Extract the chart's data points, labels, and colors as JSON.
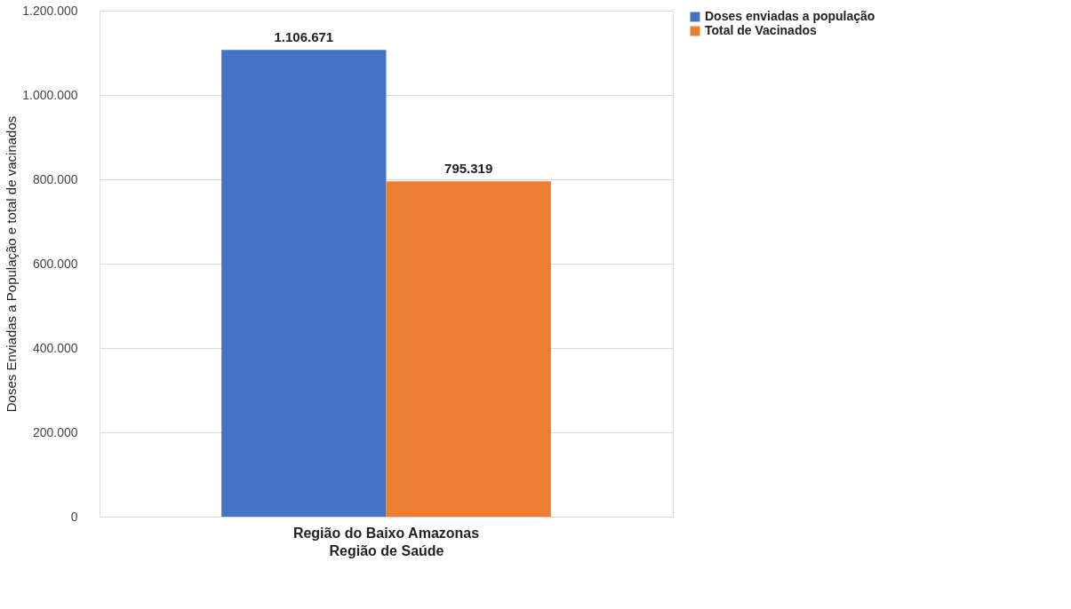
{
  "chart_data": {
    "type": "bar",
    "categories": [
      "Região do Baixo Amazonas"
    ],
    "xlabel": "Região de Saúde",
    "ylabel": "Doses Enviadas a População e total de vacinados",
    "series": [
      {
        "name": "Doses enviadas a população",
        "color": "#4472c4",
        "values": [
          1106671
        ],
        "value_labels": [
          "1.106.671"
        ]
      },
      {
        "name": "Total de Vacinados",
        "color": "#ed7d31",
        "values": [
          795319
        ],
        "value_labels": [
          "795.319"
        ]
      }
    ],
    "ylim": [
      0,
      1200000
    ],
    "yticks": [
      {
        "value": 0,
        "label": "0"
      },
      {
        "value": 200000,
        "label": "200.000"
      },
      {
        "value": 400000,
        "label": "400.000"
      },
      {
        "value": 600000,
        "label": "600.000"
      },
      {
        "value": 800000,
        "label": "800.000"
      },
      {
        "value": 1000000,
        "label": "1.000.000"
      },
      {
        "value": 1200000,
        "label": "1.200.000"
      }
    ],
    "grid": "y",
    "legend": "right"
  }
}
